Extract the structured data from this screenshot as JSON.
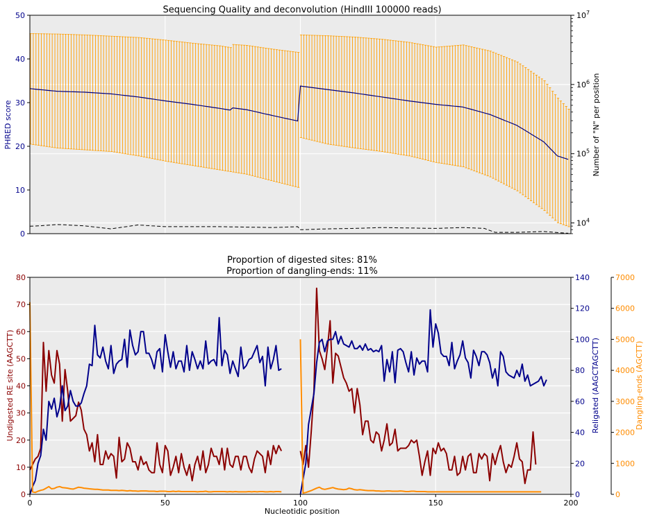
{
  "chart_data": [
    {
      "type": "line",
      "title": "Sequencing Quality and deconvolution (HindIII 100000 reads)",
      "xlim": [
        0,
        200
      ],
      "ylabel": "PHRED score",
      "ylim": [
        0,
        50
      ],
      "yticks": [
        "0",
        "10",
        "20",
        "30",
        "40",
        "50"
      ],
      "y2label": "Number of \"N\" per position",
      "y2_scale": "log",
      "y2lim": [
        7000,
        10000000
      ],
      "y2ticks": [
        {
          "value": 10000,
          "label": "10",
          "exp": "4"
        },
        {
          "value": 100000,
          "label": "10",
          "exp": "5"
        },
        {
          "value": 1000000,
          "label": "10",
          "exp": "6"
        },
        {
          "value": 10000000,
          "label": "10",
          "exp": "7"
        }
      ],
      "grid": true,
      "series": [
        {
          "role": "median_quality",
          "color": "#00007f",
          "anchors": [
            [
              0,
              33.2
            ],
            [
              10,
              32.6
            ],
            [
              20,
              32.4
            ],
            [
              30,
              32.0
            ],
            [
              40,
              31.3
            ],
            [
              50,
              30.4
            ],
            [
              60,
              29.6
            ],
            [
              70,
              28.7
            ],
            [
              74,
              28.3
            ],
            [
              75,
              28.8
            ],
            [
              80,
              28.4
            ],
            [
              90,
              27.0
            ],
            [
              99,
              25.8
            ],
            [
              100,
              33.8
            ],
            [
              110,
              33.0
            ],
            [
              120,
              32.2
            ],
            [
              130,
              31.3
            ],
            [
              140,
              30.4
            ],
            [
              150,
              29.6
            ],
            [
              160,
              29.0
            ],
            [
              170,
              27.3
            ],
            [
              180,
              24.8
            ],
            [
              190,
              21.0
            ],
            [
              195,
              17.8
            ],
            [
              199,
              17.0
            ]
          ]
        },
        {
          "role": "quality_high",
          "color": "#ff9e00",
          "anchors": [
            [
              0,
              45.8
            ],
            [
              10,
              45.7
            ],
            [
              20,
              45.5
            ],
            [
              30,
              45.2
            ],
            [
              40,
              44.9
            ],
            [
              50,
              44.3
            ],
            [
              60,
              43.6
            ],
            [
              70,
              43.0
            ],
            [
              74,
              42.6
            ],
            [
              75,
              43.3
            ],
            [
              80,
              43.1
            ],
            [
              90,
              42.2
            ],
            [
              99,
              41.5
            ],
            [
              100,
              45.5
            ],
            [
              110,
              45.3
            ],
            [
              120,
              45.0
            ],
            [
              130,
              44.5
            ],
            [
              140,
              43.8
            ],
            [
              150,
              42.7
            ],
            [
              160,
              43.2
            ],
            [
              170,
              41.8
            ],
            [
              180,
              39.3
            ],
            [
              190,
              35.0
            ],
            [
              195,
              31.0
            ],
            [
              199,
              28.5
            ]
          ]
        },
        {
          "role": "quality_low",
          "color": "#ff9e00",
          "anchors": [
            [
              0,
              20.5
            ],
            [
              10,
              19.6
            ],
            [
              20,
              19.2
            ],
            [
              30,
              18.8
            ],
            [
              40,
              17.8
            ],
            [
              50,
              16.6
            ],
            [
              60,
              15.6
            ],
            [
              70,
              14.6
            ],
            [
              80,
              13.6
            ],
            [
              90,
              12.0
            ],
            [
              99,
              10.6
            ],
            [
              100,
              22.0
            ],
            [
              110,
              20.5
            ],
            [
              120,
              19.6
            ],
            [
              130,
              18.8
            ],
            [
              140,
              17.8
            ],
            [
              150,
              16.3
            ],
            [
              160,
              15.3
            ],
            [
              170,
              13.0
            ],
            [
              180,
              9.8
            ],
            [
              190,
              5.3
            ],
            [
              195,
              2.5
            ],
            [
              199,
              1.6
            ]
          ]
        },
        {
          "role": "n_per_position",
          "color": "#000000",
          "dash": true,
          "anchors": [
            [
              0,
              1.7
            ],
            [
              4,
              1.8
            ],
            [
              10,
              2.1
            ],
            [
              20,
              1.8
            ],
            [
              30,
              1.1
            ],
            [
              40,
              2.0
            ],
            [
              50,
              1.6
            ],
            [
              60,
              1.6
            ],
            [
              70,
              1.6
            ],
            [
              80,
              1.5
            ],
            [
              90,
              1.4
            ],
            [
              99,
              1.6
            ],
            [
              100,
              0.9
            ],
            [
              110,
              1.1
            ],
            [
              120,
              1.2
            ],
            [
              130,
              1.4
            ],
            [
              140,
              1.3
            ],
            [
              150,
              1.2
            ],
            [
              160,
              1.4
            ],
            [
              168,
              1.2
            ],
            [
              172,
              0.3
            ],
            [
              180,
              0.3
            ],
            [
              190,
              0.5
            ],
            [
              196,
              0.2
            ],
            [
              199,
              0.1
            ]
          ]
        }
      ]
    },
    {
      "type": "line",
      "title_line1": "Proportion of digested sites: 81%",
      "title_line2": "Proportion of dangling-ends: 11%",
      "xlabel": "Nucleotidic position",
      "xlim": [
        0,
        200
      ],
      "xticks": [
        "0",
        "50",
        "100",
        "150",
        "200"
      ],
      "grid": true,
      "axes": [
        {
          "label": "Undigested RE site (AAGCTT)",
          "color": "#8b0000",
          "lim": [
            0,
            80
          ],
          "ticks": [
            "0",
            "10",
            "20",
            "30",
            "40",
            "50",
            "60",
            "70",
            "80"
          ]
        },
        {
          "label": "Religated (AAGCTAGCTT)",
          "color": "#00008b",
          "lim": [
            0,
            140
          ],
          "ticks": [
            "0",
            "20",
            "40",
            "60",
            "80",
            "100",
            "120",
            "140"
          ]
        },
        {
          "label": "Dangling-ends (AGCTT)",
          "color": "#ff8c00",
          "lim": [
            0,
            7000
          ],
          "ticks": [
            "0",
            "1000",
            "2000",
            "3000",
            "4000",
            "5000",
            "6000",
            "7000"
          ]
        }
      ],
      "series": [
        {
          "axis": 0,
          "color": "#8b0000",
          "x0": 0,
          "y": [
            9,
            11,
            13,
            14,
            17,
            56,
            38,
            53,
            44,
            41,
            53,
            48,
            27,
            46,
            38,
            27,
            28,
            29,
            34,
            31,
            24,
            22,
            16,
            19,
            12,
            22,
            11,
            11,
            16,
            13,
            15,
            14,
            6,
            21,
            12,
            13,
            19,
            17,
            12,
            12,
            9,
            14,
            11,
            12,
            9,
            8,
            8,
            19,
            11,
            8,
            18,
            16,
            7,
            10,
            14,
            8,
            15,
            10,
            7,
            11,
            5,
            11,
            14,
            9,
            16,
            8,
            11,
            17,
            14,
            14,
            11,
            17,
            9,
            17,
            11,
            10,
            14,
            14,
            9,
            14,
            14,
            10,
            8,
            13,
            16,
            15,
            14,
            8,
            16,
            11,
            18,
            15,
            18,
            16
          ]
        },
        {
          "axis": 0,
          "color": "#8b0000",
          "x0": 100,
          "y": [
            16,
            11,
            18,
            10,
            23,
            38,
            76,
            53,
            50,
            46,
            54,
            64,
            41,
            52,
            51,
            47,
            43,
            41,
            38,
            39,
            30,
            39,
            33,
            22,
            27,
            27,
            20,
            19,
            23,
            22,
            16,
            20,
            26,
            18,
            19,
            24,
            16,
            17,
            17,
            17,
            18,
            20,
            19,
            20,
            14,
            7,
            12,
            16,
            7,
            17,
            15,
            19,
            16,
            17,
            15,
            9,
            9,
            14,
            7,
            8,
            14,
            9,
            14,
            15,
            8,
            8,
            15,
            13,
            15,
            14,
            5,
            15,
            11,
            15,
            18,
            12,
            8,
            11,
            10,
            14,
            19,
            13,
            12,
            4,
            9,
            9,
            23,
            11
          ]
        },
        {
          "axis": 1,
          "color": "#00008b",
          "x0": 0,
          "y": [
            0,
            5,
            9,
            20,
            25,
            42,
            35,
            60,
            55,
            62,
            50,
            56,
            70,
            54,
            57,
            67,
            60,
            57,
            57,
            59,
            65,
            70,
            84,
            83,
            109,
            90,
            88,
            95,
            86,
            81,
            96,
            78,
            84,
            86,
            87,
            100,
            82,
            106,
            96,
            90,
            92,
            105,
            105,
            91,
            91,
            87,
            81,
            92,
            94,
            79,
            103,
            92,
            82,
            92,
            81,
            86,
            86,
            79,
            96,
            80,
            92,
            87,
            81,
            86,
            81,
            99,
            84,
            86,
            87,
            83,
            114,
            83,
            93,
            90,
            78,
            86,
            81,
            76,
            95,
            81,
            83,
            87,
            88,
            92,
            96,
            85,
            89,
            70,
            95,
            81,
            87,
            96,
            80,
            81
          ]
        },
        {
          "axis": 1,
          "color": "#00008b",
          "x0": 100,
          "y": [
            0,
            10,
            20,
            45,
            55,
            65,
            85,
            98,
            100,
            92,
            99,
            100,
            100,
            105,
            97,
            102,
            97,
            96,
            95,
            99,
            94,
            94,
            96,
            93,
            97,
            93,
            94,
            92,
            93,
            92,
            96,
            73,
            87,
            79,
            92,
            72,
            93,
            94,
            92,
            85,
            79,
            92,
            77,
            88,
            84,
            86,
            86,
            79,
            119,
            95,
            110,
            104,
            91,
            89,
            89,
            83,
            98,
            81,
            86,
            90,
            99,
            88,
            85,
            75,
            93,
            89,
            83,
            92,
            92,
            90,
            85,
            75,
            81,
            70,
            92,
            89,
            79,
            77,
            76,
            75,
            80,
            76,
            84,
            73,
            77,
            70,
            71,
            72,
            73,
            76,
            70,
            74
          ]
        },
        {
          "axis": 2,
          "color": "#ff8c00",
          "x0": 0,
          "y": [
            6200,
            80,
            60,
            100,
            130,
            150,
            200,
            250,
            180,
            190,
            230,
            250,
            220,
            210,
            200,
            180,
            170,
            200,
            230,
            220,
            200,
            190,
            180,
            170,
            160,
            160,
            150,
            140,
            140,
            140,
            130,
            130,
            130,
            120,
            130,
            120,
            110,
            120,
            110,
            110,
            100,
            110,
            110,
            110,
            100,
            100,
            100,
            90,
            100,
            100,
            100,
            90,
            90,
            100,
            90,
            100,
            90,
            90,
            90,
            90,
            90,
            90,
            80,
            90,
            90,
            100,
            80,
            80,
            90,
            90,
            90,
            90,
            90,
            80,
            90,
            80,
            90,
            80,
            80,
            80,
            80,
            90,
            80,
            90,
            80,
            90,
            90,
            80,
            80,
            90,
            80,
            90,
            90,
            80
          ]
        },
        {
          "axis": 2,
          "color": "#ff8c00",
          "x0": 100,
          "y": [
            5000,
            40,
            60,
            90,
            120,
            160,
            200,
            230,
            180,
            160,
            180,
            200,
            220,
            190,
            170,
            160,
            150,
            160,
            200,
            180,
            150,
            140,
            150,
            140,
            130,
            120,
            120,
            120,
            110,
            110,
            100,
            100,
            110,
            110,
            100,
            100,
            100,
            110,
            100,
            90,
            90,
            100,
            100,
            90,
            90,
            90,
            90,
            80,
            80,
            80,
            80,
            80,
            80,
            80,
            80,
            80,
            80,
            80,
            80,
            80,
            80,
            80,
            80,
            80,
            80,
            80,
            80,
            80,
            80,
            80,
            80,
            80,
            80,
            80,
            80,
            80,
            80,
            80,
            80,
            80,
            80,
            80,
            80,
            80,
            80,
            80,
            80,
            80,
            80,
            80
          ]
        }
      ]
    }
  ]
}
